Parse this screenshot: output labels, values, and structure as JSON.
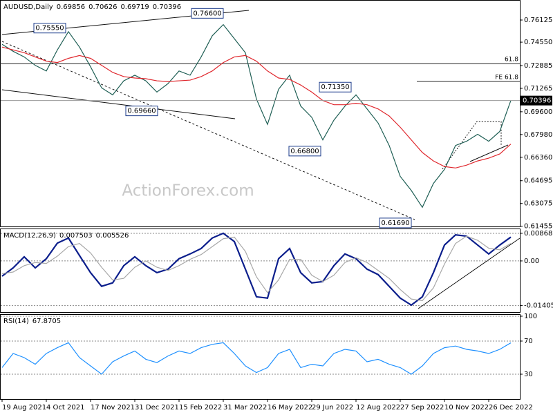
{
  "chart_data": [
    {
      "type": "line",
      "title": "AUDUSD,Daily",
      "readout": [
        0.69856,
        0.70626,
        0.69719,
        0.70396
      ],
      "series": [
        {
          "color": "#1f5f55",
          "values": [
            0.744,
            0.739,
            0.735,
            0.729,
            0.725,
            0.74,
            0.753,
            0.742,
            0.728,
            0.713,
            0.708,
            0.718,
            0.722,
            0.718,
            0.71,
            0.716,
            0.725,
            0.722,
            0.735,
            0.75,
            0.758,
            0.748,
            0.738,
            0.705,
            0.687,
            0.712,
            0.722,
            0.7,
            0.692,
            0.676,
            0.69,
            0.7,
            0.708,
            0.698,
            0.688,
            0.672,
            0.65,
            0.64,
            0.628,
            0.645,
            0.655,
            0.672,
            0.675,
            0.68,
            0.675,
            0.682,
            0.704
          ]
        },
        {
          "color": "#e0282e",
          "values": [
            0.742,
            0.74,
            0.738,
            0.735,
            0.732,
            0.731,
            0.734,
            0.736,
            0.734,
            0.729,
            0.724,
            0.721,
            0.72,
            0.7195,
            0.718,
            0.7175,
            0.718,
            0.7185,
            0.721,
            0.725,
            0.731,
            0.735,
            0.736,
            0.732,
            0.725,
            0.72,
            0.719,
            0.715,
            0.71,
            0.704,
            0.701,
            0.701,
            0.702,
            0.701,
            0.698,
            0.693,
            0.685,
            0.676,
            0.667,
            0.661,
            0.657,
            0.656,
            0.658,
            0.661,
            0.663,
            0.666,
            0.673
          ]
        }
      ],
      "ylim": [
        0.6144,
        0.7755
      ],
      "yticks": [
        0.61455,
        0.63075,
        0.64695,
        {
          "value": 0.6636,
          "label": "0.66360"
        },
        {
          "value": 0.6798,
          "label": "0.67980"
        },
        {
          "value": 0.696,
          "label": "0.69600"
        },
        0.71265,
        0.72885,
        {
          "value": 0.7455,
          "label": "0.74550"
        },
        0.76125
      ],
      "levels": [
        {
          "label": "61.8",
          "value": 0.7302
        },
        {
          "label": "FE 61.8",
          "value": 0.7176
        }
      ],
      "annotations": [
        {
          "value": 0.7555,
          "label": "0.75550"
        },
        {
          "value": 0.766,
          "label": "0.76600"
        },
        {
          "value": 0.6966,
          "label": "0.69660"
        },
        {
          "value": 0.668,
          "label": "0.66800"
        },
        {
          "value": 0.7135,
          "label": "0.71350"
        },
        {
          "value": 0.6169,
          "label": "0.61690"
        }
      ],
      "watermark": "ActionForex.com",
      "grid": false
    },
    {
      "type": "line",
      "title": "MACD(12,26,9)",
      "readout": [
        0.007503,
        0.005526
      ],
      "series": [
        {
          "color": "#0b1e8c",
          "values": [
            -0.0048,
            -0.0022,
            0.0013,
            -0.0022,
            0.0007,
            0.0056,
            0.0072,
            0.0017,
            -0.0037,
            -0.008,
            -0.0069,
            -0.0015,
            0.0013,
            -0.0015,
            -0.0037,
            -0.0026,
            0.0007,
            0.0022,
            0.0039,
            0.0072,
            0.0087,
            0.0061,
            -0.0026,
            -0.0113,
            -0.0117,
            0.0007,
            0.0039,
            -0.0037,
            -0.0069,
            -0.0065,
            -0.0015,
            0.0022,
            0.0007,
            -0.0026,
            -0.0043,
            -0.008,
            -0.0117,
            -0.0139,
            -0.0113,
            -0.0037,
            0.005,
            0.0082,
            0.0078,
            0.005,
            0.0022,
            0.005,
            0.0075
          ]
        },
        {
          "color": "#a8a8a8",
          "values": [
            -0.004,
            -0.0035,
            -0.0015,
            -0.0005,
            -0.0008,
            0.0015,
            0.0045,
            0.0055,
            0.0025,
            -0.002,
            -0.006,
            -0.0055,
            -0.002,
            0.0,
            -0.002,
            -0.003,
            -0.0015,
            0.0005,
            0.002,
            0.0045,
            0.007,
            0.0075,
            0.003,
            -0.005,
            -0.01,
            -0.006,
            0.0005,
            0.0005,
            -0.0045,
            -0.0065,
            -0.0045,
            -0.0005,
            0.001,
            -0.0005,
            -0.003,
            -0.0055,
            -0.009,
            -0.012,
            -0.0125,
            -0.0085,
            -0.001,
            0.0055,
            0.0078,
            0.0065,
            0.004,
            0.0035,
            0.0055
          ]
        }
      ],
      "ylim": [
        -0.0161,
        0.0102
      ],
      "yticks": [
        -0.014056,
        {
          "value": 0,
          "label": "0.00"
        },
        0.008687
      ],
      "grid": true
    },
    {
      "type": "line",
      "title": "RSI(14)",
      "readout": [
        67.8705
      ],
      "series": [
        {
          "color": "#1e90ff",
          "values": [
            38,
            55,
            50,
            42,
            55,
            62,
            68,
            50,
            40,
            30,
            45,
            52,
            58,
            48,
            44,
            52,
            58,
            55,
            62,
            66,
            68,
            55,
            40,
            32,
            38,
            55,
            60,
            38,
            42,
            40,
            55,
            60,
            58,
            45,
            48,
            42,
            38,
            30,
            40,
            55,
            62,
            64,
            60,
            58,
            55,
            60,
            67.87
          ]
        }
      ],
      "ylim": [
        0,
        102.5
      ],
      "yticks": [
        30,
        70,
        100
      ],
      "grid": true,
      "categories": [
        "19 Aug 2021",
        null,
        null,
        null,
        "4 Oct 2021",
        null,
        null,
        null,
        "17 Nov 2021",
        null,
        null,
        null,
        "31 Dec 2021",
        null,
        null,
        null,
        "15 Feb 2022",
        null,
        null,
        null,
        "31 Mar 2022",
        null,
        null,
        null,
        "16 May 2022",
        null,
        null,
        null,
        "29 Jun 2022",
        null,
        null,
        null,
        "12 Aug 2022",
        null,
        null,
        null,
        "27 Sep 2022",
        null,
        null,
        null,
        "10 Nov 2022",
        null,
        null,
        null,
        "26 Dec 2022",
        null,
        null
      ]
    }
  ]
}
